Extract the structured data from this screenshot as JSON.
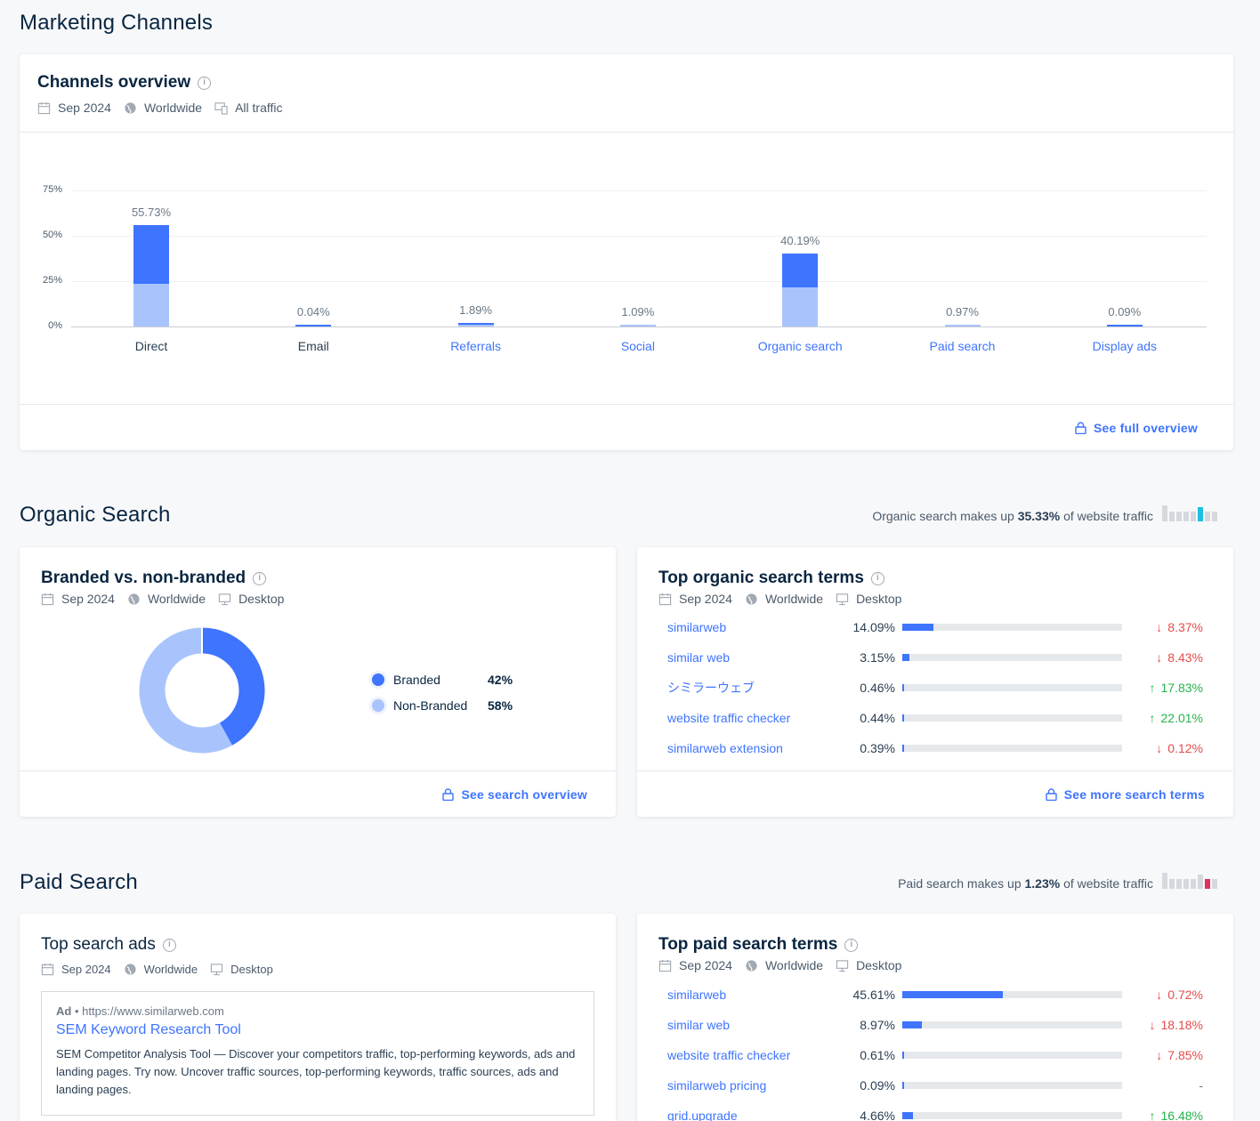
{
  "page": {
    "title": "Marketing Channels"
  },
  "channels": {
    "title": "Channels overview",
    "meta": {
      "date": "Sep 2024",
      "region": "Worldwide",
      "traffic": "All traffic"
    },
    "footer_link": "See full overview",
    "chart_data": {
      "type": "bar",
      "categories": [
        "Direct",
        "Email",
        "Referrals",
        "Social",
        "Organic search",
        "Paid search",
        "Display ads"
      ],
      "value_labels": [
        "55.73%",
        "0.04%",
        "1.89%",
        "1.09%",
        "40.19%",
        "0.97%",
        "0.09%"
      ],
      "values": [
        55.73,
        0.04,
        1.89,
        1.09,
        40.19,
        0.97,
        0.09
      ],
      "stack_light_values": [
        23.5,
        0.04,
        1.0,
        1.09,
        21.5,
        0.97,
        0.09
      ],
      "yticks": [
        "0%",
        "25%",
        "50%",
        "75%"
      ],
      "ylim": [
        0,
        75
      ],
      "grid": true,
      "colors": {
        "dark": "#3e74fe",
        "light": "#a9c4fd"
      },
      "linked_categories": [
        "Referrals",
        "Social",
        "Organic search",
        "Paid search",
        "Display ads"
      ]
    }
  },
  "organic": {
    "title": "Organic Search",
    "summary": {
      "prefix": "Organic search makes up ",
      "value": "35.33%",
      "suffix": " of website traffic"
    },
    "branded": {
      "title": "Branded vs. non-branded",
      "meta": {
        "date": "Sep 2024",
        "region": "Worldwide",
        "device": "Desktop"
      },
      "legend": [
        {
          "label": "Branded",
          "value": "42%",
          "color": "#3e74fe"
        },
        {
          "label": "Non-Branded",
          "value": "58%",
          "color": "#a9c4fd"
        }
      ],
      "chart_data": {
        "type": "pie",
        "categories": [
          "Branded",
          "Non-Branded"
        ],
        "values": [
          42,
          58
        ]
      },
      "footer_link": "See search overview"
    },
    "top_terms": {
      "title": "Top organic search terms",
      "meta": {
        "date": "Sep 2024",
        "region": "Worldwide",
        "device": "Desktop"
      },
      "rows": [
        {
          "term": "similarweb",
          "share": "14.09%",
          "share_value": 14.09,
          "change": "8.37%",
          "dir": "down"
        },
        {
          "term": "similar web",
          "share": "3.15%",
          "share_value": 3.15,
          "change": "8.43%",
          "dir": "down"
        },
        {
          "term": "シミラーウェブ",
          "share": "0.46%",
          "share_value": 0.46,
          "change": "17.83%",
          "dir": "up"
        },
        {
          "term": "website traffic checker",
          "share": "0.44%",
          "share_value": 0.44,
          "change": "22.01%",
          "dir": "up"
        },
        {
          "term": "similarweb extension",
          "share": "0.39%",
          "share_value": 0.39,
          "change": "0.12%",
          "dir": "down"
        }
      ],
      "footer_link": "See more search terms"
    }
  },
  "paid": {
    "title": "Paid Search",
    "summary": {
      "prefix": "Paid search makes up ",
      "value": "1.23%",
      "suffix": " of website traffic"
    },
    "ads": {
      "title": "Top search ads",
      "meta": {
        "date": "Sep 2024",
        "region": "Worldwide",
        "device": "Desktop"
      },
      "ad": {
        "badge": "Ad",
        "url": "https://www.similarweb.com",
        "headline": "SEM Keyword Research Tool",
        "description": "SEM Competitor Analysis Tool — Discover your competitors traffic, top-performing keywords, ads and landing pages. Try now. Uncover traffic sources, top-performing keywords, traffic sources, ads and landing pages."
      }
    },
    "top_terms": {
      "title": "Top paid search terms",
      "meta": {
        "date": "Sep 2024",
        "region": "Worldwide",
        "device": "Desktop"
      },
      "rows": [
        {
          "term": "similarweb",
          "share": "45.61%",
          "share_value": 45.61,
          "change": "0.72%",
          "dir": "down"
        },
        {
          "term": "similar web",
          "share": "8.97%",
          "share_value": 8.97,
          "change": "18.18%",
          "dir": "down"
        },
        {
          "term": "website traffic checker",
          "share": "0.61%",
          "share_value": 0.61,
          "change": "7.85%",
          "dir": "down"
        },
        {
          "term": "similarweb pricing",
          "share": "0.09%",
          "share_value": 0.09,
          "change": "-",
          "dir": "none"
        },
        {
          "term": "grid.upgrade",
          "share": "4.66%",
          "share_value": 4.66,
          "change": "16.48%",
          "dir": "up"
        }
      ]
    }
  },
  "icons": [
    "calendar-icon",
    "globe-icon",
    "devices-icon",
    "desktop-icon",
    "info-icon",
    "lock-icon",
    "arrow-down-icon",
    "arrow-up-icon"
  ]
}
